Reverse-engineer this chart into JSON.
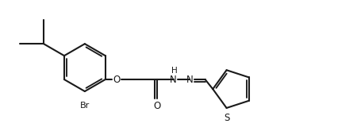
{
  "background_color": "#ffffff",
  "line_color": "#1a1a1a",
  "line_width": 1.5,
  "figsize": [
    4.5,
    1.75
  ],
  "dpi": 100,
  "xlim": [
    0,
    9.0
  ],
  "ylim": [
    0.2,
    3.8
  ]
}
